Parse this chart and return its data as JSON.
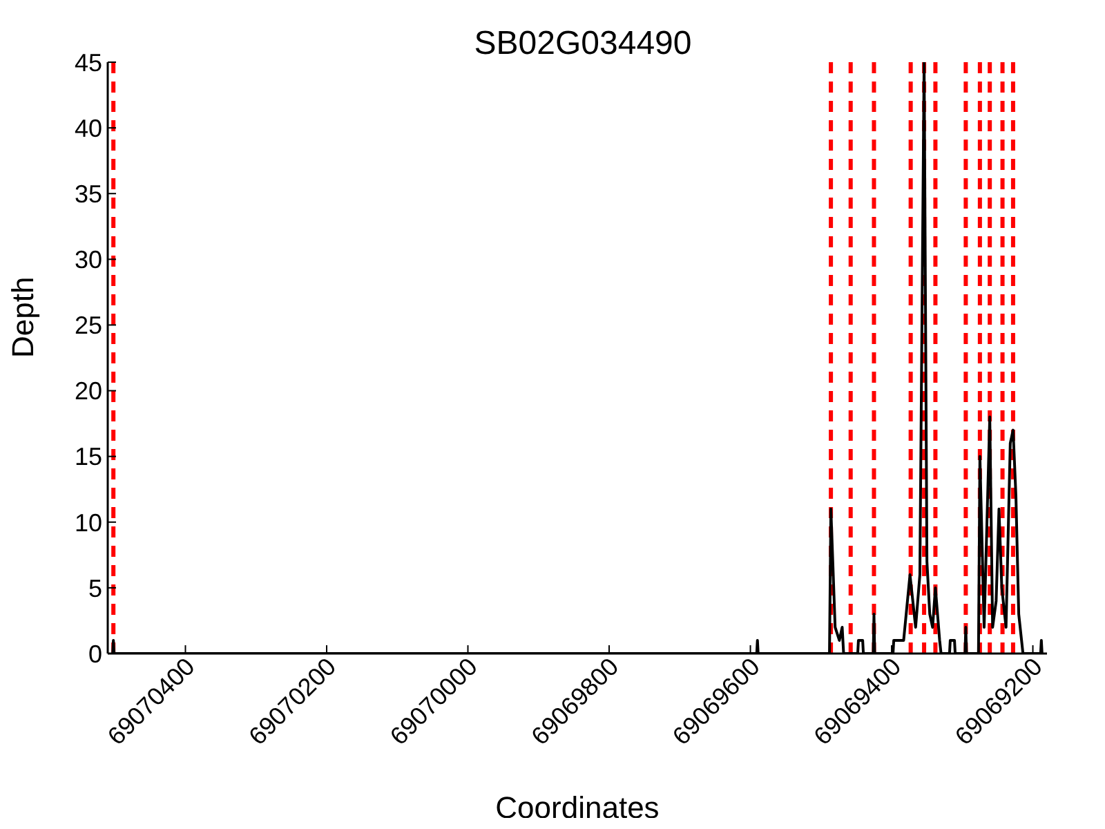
{
  "chart_data": {
    "type": "line",
    "title": "SB02G034490",
    "xlabel": "Coordinates",
    "ylabel": "Depth",
    "xlim": [
      69070510,
      69069180
    ],
    "xticks": [
      69070400,
      69070200,
      69070000,
      69069800,
      69069600,
      69069400,
      69069200
    ],
    "ylim": [
      0,
      45
    ],
    "yticks": [
      0,
      5,
      10,
      15,
      20,
      25,
      30,
      35,
      40,
      45
    ],
    "grid": false,
    "legend": false,
    "marker": "none",
    "line_style": "solid",
    "series": [
      {
        "color": "#000000",
        "x": [
          69070503,
          69070502,
          69070501,
          69069591,
          69069590,
          69069589,
          69069488,
          69069486,
          69069480,
          69069474,
          69069470,
          69069468,
          69069448,
          69069447,
          69069441,
          69069440,
          69069426,
          69069425,
          69069424,
          69069398,
          69069397,
          69069391,
          69069383,
          69069374,
          69069370,
          69069366,
          69069360,
          69069354,
          69069350,
          69069346,
          69069342,
          69069338,
          69069332,
          69069330,
          69069318,
          69069317,
          69069311,
          69069310,
          69069296,
          69069295,
          69069294,
          69069277,
          69069275,
          69069269,
          69069261,
          69069257,
          69069252,
          69069248,
          69069244,
          69069238,
          69069232,
          69069228,
          69069224,
          69069220,
          69069216,
          69069214,
          69069189,
          69069188,
          69069187
        ],
        "values": [
          0,
          1,
          0,
          0,
          1,
          0,
          0,
          11,
          2,
          1,
          2,
          0,
          0,
          1,
          1,
          0,
          0,
          3,
          0,
          0,
          1,
          1,
          1,
          6,
          4,
          2,
          6,
          45,
          7,
          3,
          2,
          5,
          1,
          0,
          0,
          1,
          1,
          0,
          0,
          2,
          0,
          0,
          15,
          2,
          18,
          2,
          4,
          11,
          5,
          2,
          16,
          17,
          12,
          3,
          1,
          0,
          0,
          1,
          0
        ]
      }
    ],
    "ref_lines": [
      {
        "axis": "x",
        "value": 69070502,
        "color": "#ff0000",
        "line_style": "dashed"
      },
      {
        "axis": "x",
        "value": 69069486,
        "color": "#ff0000",
        "line_style": "dashed"
      },
      {
        "axis": "x",
        "value": 69069458,
        "color": "#ff0000",
        "line_style": "dashed"
      },
      {
        "axis": "x",
        "value": 69069425,
        "color": "#ff0000",
        "line_style": "dashed"
      },
      {
        "axis": "x",
        "value": 69069373,
        "color": "#ff0000",
        "line_style": "dashed"
      },
      {
        "axis": "x",
        "value": 69069354,
        "color": "#ff0000",
        "line_style": "dashed"
      },
      {
        "axis": "x",
        "value": 69069338,
        "color": "#ff0000",
        "line_style": "dashed"
      },
      {
        "axis": "x",
        "value": 69069295,
        "color": "#ff0000",
        "line_style": "dashed"
      },
      {
        "axis": "x",
        "value": 69069275,
        "color": "#ff0000",
        "line_style": "dashed"
      },
      {
        "axis": "x",
        "value": 69069261,
        "color": "#ff0000",
        "line_style": "dashed"
      },
      {
        "axis": "x",
        "value": 69069243,
        "color": "#ff0000",
        "line_style": "dashed"
      },
      {
        "axis": "x",
        "value": 69069228,
        "color": "#ff0000",
        "line_style": "dashed"
      }
    ]
  }
}
